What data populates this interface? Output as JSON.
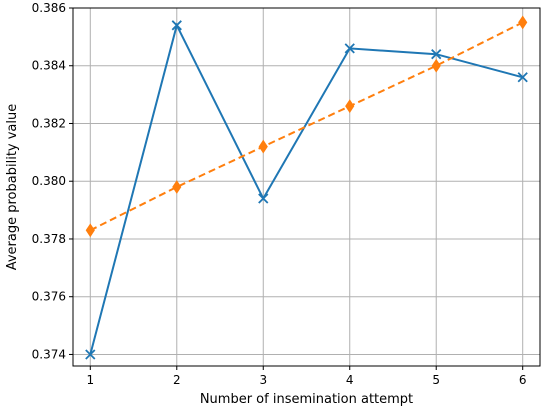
{
  "chart_data": {
    "type": "line",
    "xlabel": "Number of insemination attempt",
    "ylabel": "Average probability value",
    "x": [
      1,
      2,
      3,
      4,
      5,
      6
    ],
    "x_ticks": [
      "1",
      "2",
      "3",
      "4",
      "5",
      "6"
    ],
    "y_ticks": [
      "0.374",
      "0.376",
      "0.378",
      "0.380",
      "0.382",
      "0.384",
      "0.386"
    ],
    "xlim": [
      0.8,
      6.2
    ],
    "ylim": [
      0.3736,
      0.386
    ],
    "grid": true,
    "series": [
      {
        "values": [
          0.374,
          0.3854,
          0.3794,
          0.3846,
          0.3844,
          0.3836
        ],
        "color": "#1f77b4",
        "line_style": "solid",
        "marker": "x"
      },
      {
        "values": [
          0.3783,
          0.3798,
          0.3812,
          0.3826,
          0.384,
          0.3855
        ],
        "color": "#ff7f0e",
        "line_style": "dashed",
        "marker": "diamond"
      }
    ]
  }
}
